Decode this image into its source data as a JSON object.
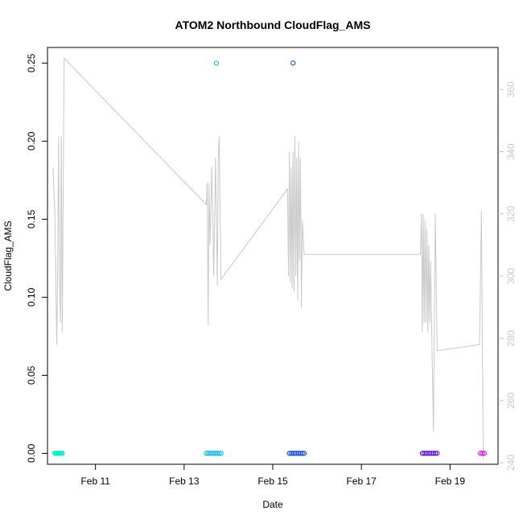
{
  "chart_data": {
    "type": "scatter",
    "title": "ATOM2 Northbound CloudFlag_AMS",
    "xlabel": "Date",
    "ylabel": "CloudFlag_AMS",
    "ylim": [
      -0.007,
      0.26
    ],
    "y_ticks": [
      "0.00",
      "0.05",
      "0.10",
      "0.15",
      "0.20",
      "0.25"
    ],
    "xlim": [
      "2018-02-09 22:00",
      "2018-02-20 02:00"
    ],
    "x_ticks": [
      {
        "label": "Feb 11",
        "x": "2018-02-11"
      },
      {
        "label": "Feb 13",
        "x": "2018-02-13"
      },
      {
        "label": "Feb 15",
        "x": "2018-02-15"
      },
      {
        "label": "Feb 17",
        "x": "2018-02-17"
      },
      {
        "label": "Feb 19",
        "x": "2018-02-19"
      }
    ],
    "y2lim": [
      239.5,
      373.5
    ],
    "y2_ticks": [
      "240",
      "260",
      "280",
      "300",
      "320",
      "340",
      "360"
    ],
    "grid": false,
    "colors": {
      "line": "#c8c8c8",
      "axis": "#000000",
      "axis_right": "#c8c8c8"
    },
    "series": [
      {
        "color": "#00f0c0",
        "points": [
          [
            "2018-02-10 02:00",
            0
          ],
          [
            "2018-02-10 02:30",
            0
          ],
          [
            "2018-02-10 03:00",
            0
          ],
          [
            "2018-02-10 03:30",
            0
          ],
          [
            "2018-02-10 04:00",
            0
          ],
          [
            "2018-02-10 04:30",
            0
          ],
          [
            "2018-02-10 05:00",
            0
          ],
          [
            "2018-02-10 05:30",
            0
          ],
          [
            "2018-02-10 06:00",
            0
          ]
        ]
      },
      {
        "color": "#00b8ff",
        "points": [
          [
            "2018-02-13 12:00",
            0
          ],
          [
            "2018-02-13 13:00",
            0
          ],
          [
            "2018-02-13 14:00",
            0
          ],
          [
            "2018-02-13 15:00",
            0
          ],
          [
            "2018-02-13 16:00",
            0
          ],
          [
            "2018-02-13 17:00",
            0
          ],
          [
            "2018-02-13 18:00",
            0
          ],
          [
            "2018-02-13 19:00",
            0
          ],
          [
            "2018-02-13 20:00",
            0
          ],
          [
            "2018-02-13 17:30",
            0.25
          ]
        ]
      },
      {
        "color": "#0040ff",
        "points": [
          [
            "2018-02-15 09:00",
            0
          ],
          [
            "2018-02-15 10:00",
            0
          ],
          [
            "2018-02-15 11:00",
            0
          ],
          [
            "2018-02-15 12:00",
            0
          ],
          [
            "2018-02-15 13:00",
            0
          ],
          [
            "2018-02-15 14:00",
            0
          ],
          [
            "2018-02-15 15:00",
            0
          ],
          [
            "2018-02-15 16:00",
            0
          ],
          [
            "2018-02-15 17:00",
            0
          ],
          [
            "2018-02-15 11:00",
            0.25
          ]
        ]
      },
      {
        "color": "#5000f0",
        "points": [
          [
            "2018-02-18 09:00",
            0
          ],
          [
            "2018-02-18 10:00",
            0
          ],
          [
            "2018-02-18 11:00",
            0
          ],
          [
            "2018-02-18 12:00",
            0
          ],
          [
            "2018-02-18 13:00",
            0
          ],
          [
            "2018-02-18 14:00",
            0
          ],
          [
            "2018-02-18 15:00",
            0
          ],
          [
            "2018-02-18 16:00",
            0
          ],
          [
            "2018-02-18 17:00",
            0
          ]
        ]
      },
      {
        "color": "#e000e0",
        "points": [
          [
            "2018-02-19 16:30",
            0
          ],
          [
            "2018-02-19 17:30",
            0
          ],
          [
            "2018-02-19 18:30",
            0
          ]
        ]
      }
    ],
    "line_series": {
      "axis": "right",
      "points": [
        [
          "2018-02-10 01:00",
          335
        ],
        [
          "2018-02-10 02:00",
          320
        ],
        [
          "2018-02-10 02:30",
          300
        ],
        [
          "2018-02-10 03:00",
          278
        ],
        [
          "2018-02-10 03:30",
          300
        ],
        [
          "2018-02-10 04:00",
          345
        ],
        [
          "2018-02-10 04:30",
          300
        ],
        [
          "2018-02-10 05:00",
          285
        ],
        [
          "2018-02-10 05:30",
          345
        ],
        [
          "2018-02-10 06:00",
          282
        ],
        [
          "2018-02-10 07:00",
          370
        ],
        [
          "2018-02-13 12:00",
          323
        ],
        [
          "2018-02-13 12:30",
          330
        ],
        [
          "2018-02-13 13:00",
          284
        ],
        [
          "2018-02-13 13:30",
          330
        ],
        [
          "2018-02-13 14:00",
          310
        ],
        [
          "2018-02-13 15:00",
          335
        ],
        [
          "2018-02-13 16:00",
          300
        ],
        [
          "2018-02-13 17:00",
          338
        ],
        [
          "2018-02-13 18:00",
          297
        ],
        [
          "2018-02-13 18:30",
          338
        ],
        [
          "2018-02-13 19:00",
          345
        ],
        [
          "2018-02-13 20:00",
          299
        ],
        [
          "2018-02-15 08:00",
          328
        ],
        [
          "2018-02-15 08:30",
          300
        ],
        [
          "2018-02-15 09:00",
          340
        ],
        [
          "2018-02-15 09:30",
          298
        ],
        [
          "2018-02-15 10:00",
          335
        ],
        [
          "2018-02-15 10:30",
          296
        ],
        [
          "2018-02-15 11:00",
          340
        ],
        [
          "2018-02-15 11:30",
          295
        ],
        [
          "2018-02-15 12:00",
          345
        ],
        [
          "2018-02-15 12:30",
          300
        ],
        [
          "2018-02-15 13:00",
          338
        ],
        [
          "2018-02-15 13:30",
          292
        ],
        [
          "2018-02-15 14:00",
          343
        ],
        [
          "2018-02-15 14:30",
          305
        ],
        [
          "2018-02-15 15:00",
          338
        ],
        [
          "2018-02-15 15:30",
          290
        ],
        [
          "2018-02-15 16:00",
          318
        ],
        [
          "2018-02-15 17:00",
          307
        ],
        [
          "2018-02-18 08:00",
          307
        ],
        [
          "2018-02-18 08:30",
          320
        ],
        [
          "2018-02-18 09:00",
          282
        ],
        [
          "2018-02-18 09:30",
          320
        ],
        [
          "2018-02-18 10:00",
          285
        ],
        [
          "2018-02-18 10:30",
          318
        ],
        [
          "2018-02-18 11:00",
          285
        ],
        [
          "2018-02-18 11:30",
          315
        ],
        [
          "2018-02-18 12:00",
          282
        ],
        [
          "2018-02-18 12:30",
          310
        ],
        [
          "2018-02-18 13:00",
          285
        ],
        [
          "2018-02-18 13:30",
          305
        ],
        [
          "2018-02-18 14:00",
          285
        ],
        [
          "2018-02-18 15:00",
          250
        ],
        [
          "2018-02-18 16:00",
          320
        ],
        [
          "2018-02-18 17:00",
          276
        ],
        [
          "2018-02-19 16:00",
          278
        ],
        [
          "2018-02-19 17:00",
          321
        ],
        [
          "2018-02-19 18:00",
          241
        ]
      ]
    }
  }
}
